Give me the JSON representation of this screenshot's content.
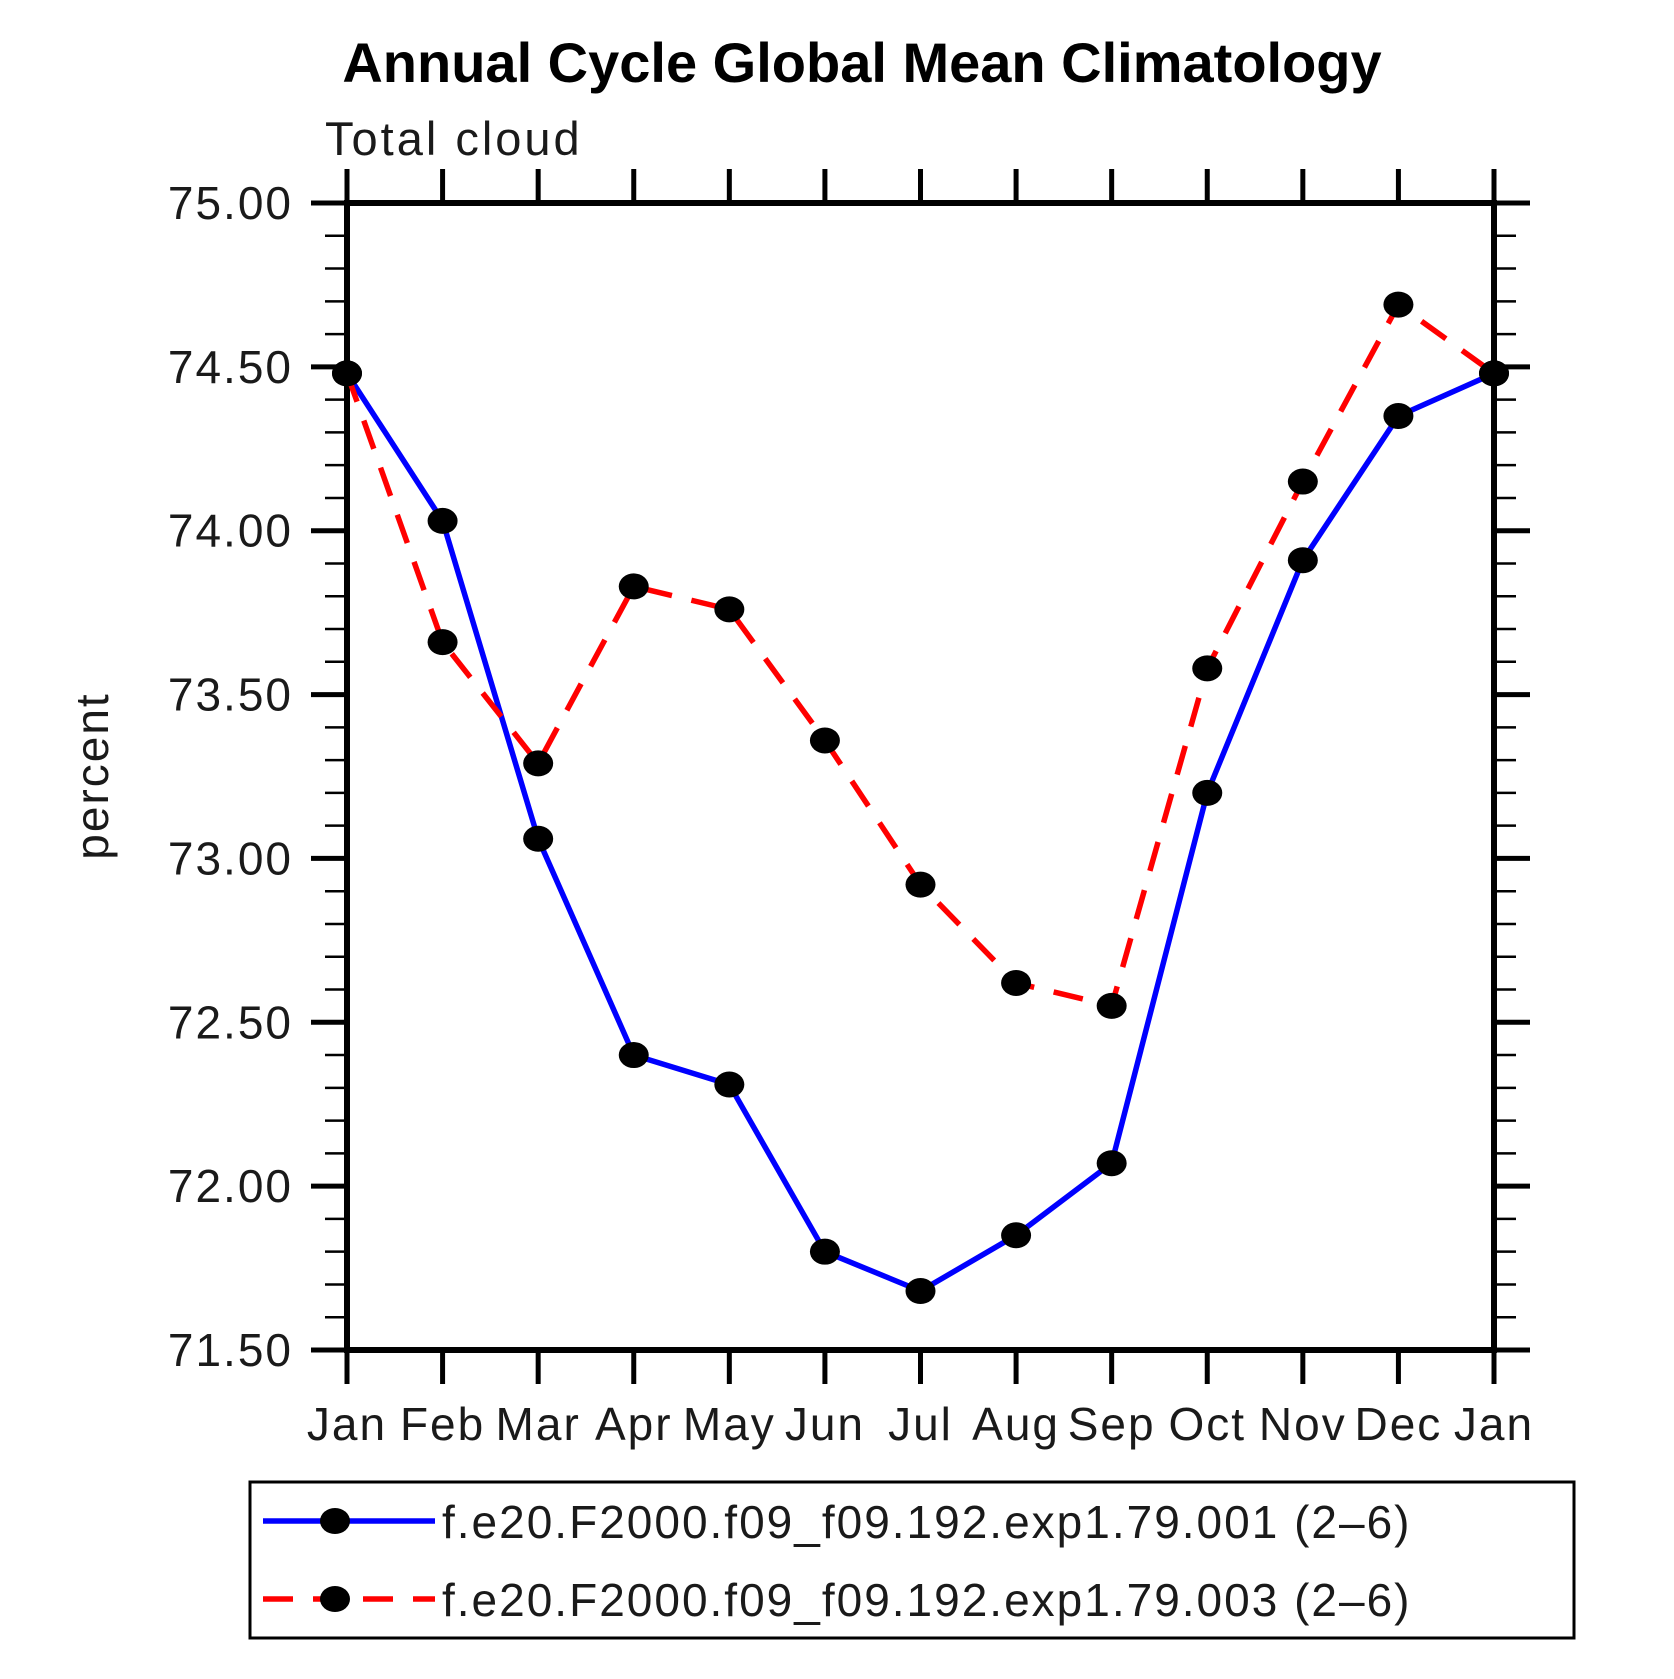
{
  "page": {
    "background": "#ffffff"
  },
  "chart_data": {
    "type": "line",
    "title": "Annual Cycle Global Mean Climatology",
    "subtitle": "Total cloud",
    "xlabel": "",
    "ylabel": "percent",
    "categories": [
      "Jan",
      "Feb",
      "Mar",
      "Apr",
      "May",
      "Jun",
      "Jul",
      "Aug",
      "Sep",
      "Oct",
      "Nov",
      "Dec",
      "Jan"
    ],
    "ylim": [
      71.5,
      75.0
    ],
    "ytick_major_interval": 0.5,
    "ytick_minor_interval": 0.1,
    "ytick_labels": [
      "75.00",
      "74.50",
      "74.00",
      "73.50",
      "73.00",
      "72.50",
      "72.00",
      "71.50"
    ],
    "grid": false,
    "legend_position": "bottom",
    "axis_color": "#000000",
    "marker_color": "#000000",
    "series": [
      {
        "name": "f.e20.F2000.f09_f09.192.exp1.79.001 (2–6)",
        "color": "#0000ff",
        "style": "solid",
        "marker": "filled-circle",
        "values": [
          74.48,
          74.03,
          73.06,
          72.4,
          72.31,
          71.8,
          71.68,
          71.85,
          72.07,
          73.2,
          73.91,
          74.35,
          74.48
        ]
      },
      {
        "name": "f.e20.F2000.f09_f09.192.exp1.79.003 (2–6)",
        "color": "#ff0000",
        "style": "dashed",
        "marker": "filled-circle",
        "values": [
          74.48,
          73.66,
          73.29,
          73.83,
          73.76,
          73.36,
          72.92,
          72.62,
          72.55,
          73.58,
          74.15,
          74.69,
          74.48
        ]
      }
    ]
  }
}
